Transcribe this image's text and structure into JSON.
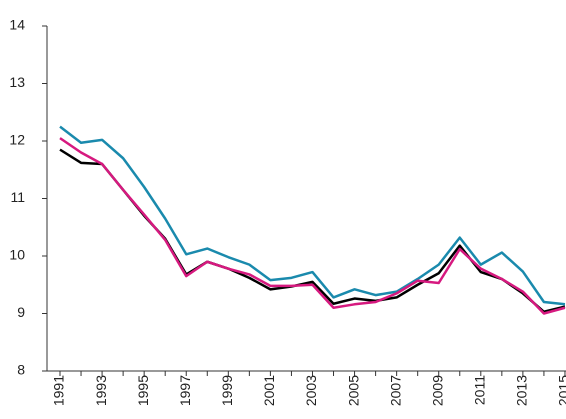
{
  "chart_data": {
    "type": "line",
    "categories": [
      "1991",
      null,
      "1993",
      null,
      "1995",
      null,
      "1997",
      null,
      "1999",
      null,
      "2001",
      null,
      "2003",
      null,
      "2005",
      null,
      "2007",
      null,
      "2009",
      null,
      "2011",
      null,
      "2013",
      null,
      "2015"
    ],
    "series": [
      {
        "color": "#1a8aad",
        "values": [
          12.25,
          11.97,
          12.02,
          11.7,
          11.2,
          10.65,
          10.03,
          10.13,
          9.98,
          9.85,
          9.58,
          9.62,
          9.72,
          9.28,
          9.42,
          9.32,
          9.38,
          9.6,
          9.85,
          10.32,
          9.85,
          10.06,
          9.73,
          9.2,
          9.16
        ]
      },
      {
        "color": "#000000",
        "values": [
          11.85,
          11.62,
          11.6,
          11.15,
          10.7,
          10.3,
          9.68,
          9.9,
          9.78,
          9.62,
          9.42,
          9.47,
          9.55,
          9.17,
          9.26,
          9.22,
          9.28,
          9.5,
          9.7,
          10.18,
          9.72,
          9.6,
          9.35,
          9.03,
          9.12
        ]
      },
      {
        "color": "#d6197f",
        "values": [
          12.05,
          11.8,
          11.6,
          11.15,
          10.72,
          10.28,
          9.65,
          9.9,
          9.78,
          9.68,
          9.48,
          9.48,
          9.5,
          9.1,
          9.16,
          9.2,
          9.35,
          9.57,
          9.53,
          10.12,
          9.78,
          9.6,
          9.38,
          9.0,
          9.1
        ]
      }
    ],
    "ylim": [
      8,
      14
    ],
    "yticks": [
      8,
      9,
      10,
      11,
      12,
      13,
      14
    ]
  }
}
